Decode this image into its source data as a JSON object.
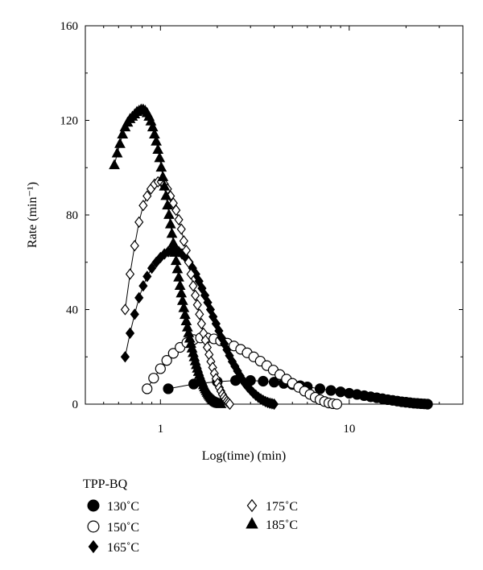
{
  "chart_data": {
    "type": "line",
    "xlabel": "Log(time) (min)",
    "ylabel": "Rate (min⁻¹)",
    "xscale": "log",
    "xlim": [
      0.4,
      40
    ],
    "ylim": [
      0,
      160
    ],
    "xticks": [
      1,
      10
    ],
    "xtick_labels": [
      "1",
      "10"
    ],
    "yticks": [
      0,
      40,
      80,
      120,
      160
    ],
    "ytick_labels": [
      "0",
      "40",
      "80",
      "120",
      "160"
    ],
    "grid": false,
    "legend": {
      "title": "TPP-BQ",
      "placement": "below-left"
    },
    "series": [
      {
        "name": "130˚C",
        "marker": "filled-circle",
        "color": "#000000",
        "x": [
          1.1,
          1.5,
          2.0,
          2.5,
          3.0,
          3.5,
          4.0,
          4.5,
          5.0,
          5.5,
          6.0,
          7.0,
          8.0,
          9.0,
          10.0,
          11.0,
          12.0,
          13.0,
          14.0,
          15.0,
          16.0,
          17.0,
          18.0,
          19.0,
          20.0,
          21.0,
          22.0,
          23.0,
          24.0,
          25.0,
          26.0
        ],
        "y": [
          6.5,
          8.5,
          9.5,
          10.0,
          10.0,
          9.7,
          9.3,
          8.8,
          8.3,
          7.8,
          7.3,
          6.5,
          5.8,
          5.2,
          4.6,
          4.1,
          3.6,
          3.1,
          2.7,
          2.3,
          1.9,
          1.6,
          1.3,
          1.0,
          0.8,
          0.6,
          0.4,
          0.3,
          0.2,
          0.1,
          0.0
        ]
      },
      {
        "name": "150˚C",
        "marker": "open-circle",
        "color": "#000000",
        "x": [
          0.85,
          0.92,
          1.0,
          1.08,
          1.17,
          1.27,
          1.38,
          1.5,
          1.63,
          1.77,
          1.92,
          2.08,
          2.26,
          2.45,
          2.66,
          2.88,
          3.12,
          3.38,
          3.66,
          3.96,
          4.29,
          4.65,
          5.0,
          5.4,
          5.8,
          6.2,
          6.6,
          7.0,
          7.4,
          7.8,
          8.2,
          8.6
        ],
        "y": [
          6.5,
          11.0,
          15.0,
          18.5,
          21.5,
          24.0,
          26.0,
          27.3,
          28.0,
          28.0,
          27.6,
          26.8,
          25.8,
          24.6,
          23.2,
          21.7,
          20.0,
          18.2,
          16.3,
          14.4,
          12.5,
          10.6,
          8.8,
          7.1,
          5.5,
          4.1,
          2.9,
          1.9,
          1.1,
          0.5,
          0.2,
          0.0
        ]
      },
      {
        "name": "165˚C",
        "marker": "filled-diamond",
        "color": "#000000",
        "x": [
          0.65,
          0.69,
          0.73,
          0.77,
          0.81,
          0.85,
          0.9,
          0.95,
          1.0,
          1.05,
          1.1,
          1.15,
          1.2,
          1.25,
          1.3,
          1.36,
          1.42,
          1.48,
          1.54,
          1.6,
          1.66,
          1.72,
          1.78,
          1.84,
          1.9,
          1.97,
          2.04,
          2.11,
          2.18,
          2.25,
          2.32,
          2.4,
          2.48,
          2.56,
          2.64,
          2.72,
          2.8,
          2.9,
          3.0,
          3.1,
          3.2,
          3.3,
          3.4,
          3.5,
          3.6,
          3.7,
          3.8,
          3.9,
          4.0
        ],
        "y": [
          20,
          30,
          38,
          45,
          50,
          54,
          57.5,
          60,
          62,
          63.5,
          64.5,
          65,
          65,
          64.5,
          63.5,
          62,
          60,
          57.5,
          55,
          52,
          49,
          46,
          43,
          40,
          37,
          34,
          31,
          28,
          25.5,
          23,
          20.5,
          18,
          16,
          14,
          12,
          10.3,
          8.8,
          7.3,
          6.0,
          4.8,
          3.8,
          2.9,
          2.2,
          1.6,
          1.1,
          0.7,
          0.4,
          0.2,
          0.0
        ]
      },
      {
        "name": "175˚C",
        "marker": "open-diamond",
        "color": "#000000",
        "x": [
          0.65,
          0.69,
          0.73,
          0.77,
          0.81,
          0.85,
          0.89,
          0.93,
          0.97,
          1.01,
          1.05,
          1.09,
          1.13,
          1.17,
          1.21,
          1.25,
          1.29,
          1.33,
          1.37,
          1.41,
          1.45,
          1.49,
          1.53,
          1.57,
          1.61,
          1.65,
          1.69,
          1.73,
          1.77,
          1.81,
          1.85,
          1.89,
          1.93,
          1.97,
          2.01,
          2.05,
          2.09,
          2.13,
          2.17,
          2.21,
          2.25,
          2.29,
          2.33
        ],
        "y": [
          40,
          55,
          67,
          77,
          84,
          88,
          91,
          93,
          94,
          94,
          93,
          91,
          88,
          85,
          82,
          78,
          74,
          69,
          65,
          60,
          55,
          50,
          46,
          42,
          38,
          34,
          30,
          27,
          24,
          21,
          18,
          15.5,
          13,
          10.8,
          8.8,
          7.0,
          5.5,
          4.1,
          3.0,
          2.0,
          1.2,
          0.6,
          0.0
        ]
      },
      {
        "name": "185˚C",
        "marker": "filled-triangle",
        "color": "#000000",
        "x": [
          0.57,
          0.59,
          0.61,
          0.63,
          0.65,
          0.67,
          0.69,
          0.71,
          0.73,
          0.75,
          0.77,
          0.79,
          0.81,
          0.83,
          0.85,
          0.87,
          0.89,
          0.91,
          0.93,
          0.95,
          0.97,
          0.99,
          1.01,
          1.03,
          1.05,
          1.07,
          1.09,
          1.11,
          1.13,
          1.15,
          1.17,
          1.19,
          1.21,
          1.23,
          1.25,
          1.27,
          1.29,
          1.31,
          1.33,
          1.35,
          1.37,
          1.39,
          1.41,
          1.43,
          1.45,
          1.47,
          1.49,
          1.51,
          1.53,
          1.55,
          1.57,
          1.59,
          1.61,
          1.63,
          1.65,
          1.67,
          1.69,
          1.71,
          1.73,
          1.75,
          1.77,
          1.79,
          1.81,
          1.83,
          1.85,
          1.87,
          1.89,
          1.91,
          1.93,
          1.95,
          1.97,
          1.99,
          2.01,
          2.03,
          2.05,
          2.07,
          2.09
        ],
        "y": [
          101,
          106,
          110,
          114,
          117,
          119,
          120.5,
          121.5,
          122.5,
          123.5,
          124,
          124.5,
          124.5,
          124,
          123,
          121.5,
          119.5,
          117,
          114,
          111,
          107.5,
          104,
          100,
          96,
          92,
          88,
          84,
          80,
          76,
          72,
          68,
          64,
          60.5,
          57,
          53.5,
          50,
          46.8,
          43.6,
          40.6,
          37.7,
          35,
          32.4,
          30,
          27.7,
          25.5,
          23.5,
          21.6,
          19.8,
          18.1,
          16.5,
          15,
          13.6,
          12.3,
          11.1,
          10,
          9,
          8,
          7.1,
          6.3,
          5.5,
          4.8,
          4.2,
          3.6,
          3.1,
          2.6,
          2.2,
          1.8,
          1.5,
          1.2,
          0.9,
          0.7,
          0.5,
          0.35,
          0.2,
          0.1,
          0.05,
          0.0
        ]
      }
    ]
  }
}
